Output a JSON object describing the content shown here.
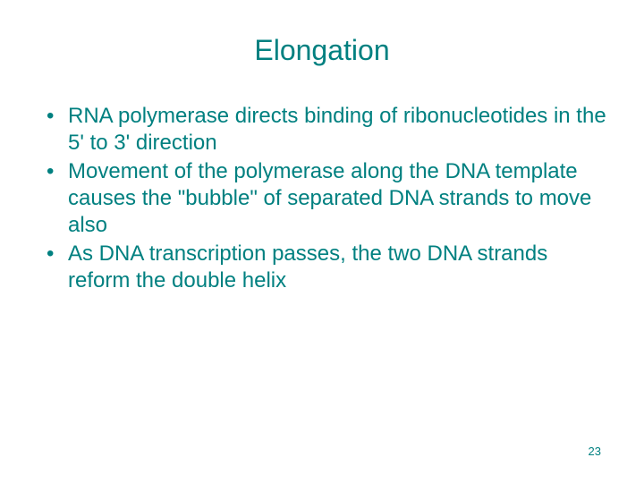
{
  "slide": {
    "title": "Elongation",
    "bullets": [
      "RNA polymerase directs binding of ribonucleotides in the 5' to 3' direction",
      "Movement of the polymerase along the DNA template causes the \"bubble\" of separated DNA strands to move also",
      "As DNA transcription  passes, the two DNA strands reform the double helix"
    ],
    "page_number": "23",
    "colors": {
      "text": "#008080",
      "background": "#ffffff"
    },
    "typography": {
      "title_fontsize": 32,
      "body_fontsize": 24,
      "page_number_fontsize": 13,
      "font_family": "Arial"
    }
  }
}
